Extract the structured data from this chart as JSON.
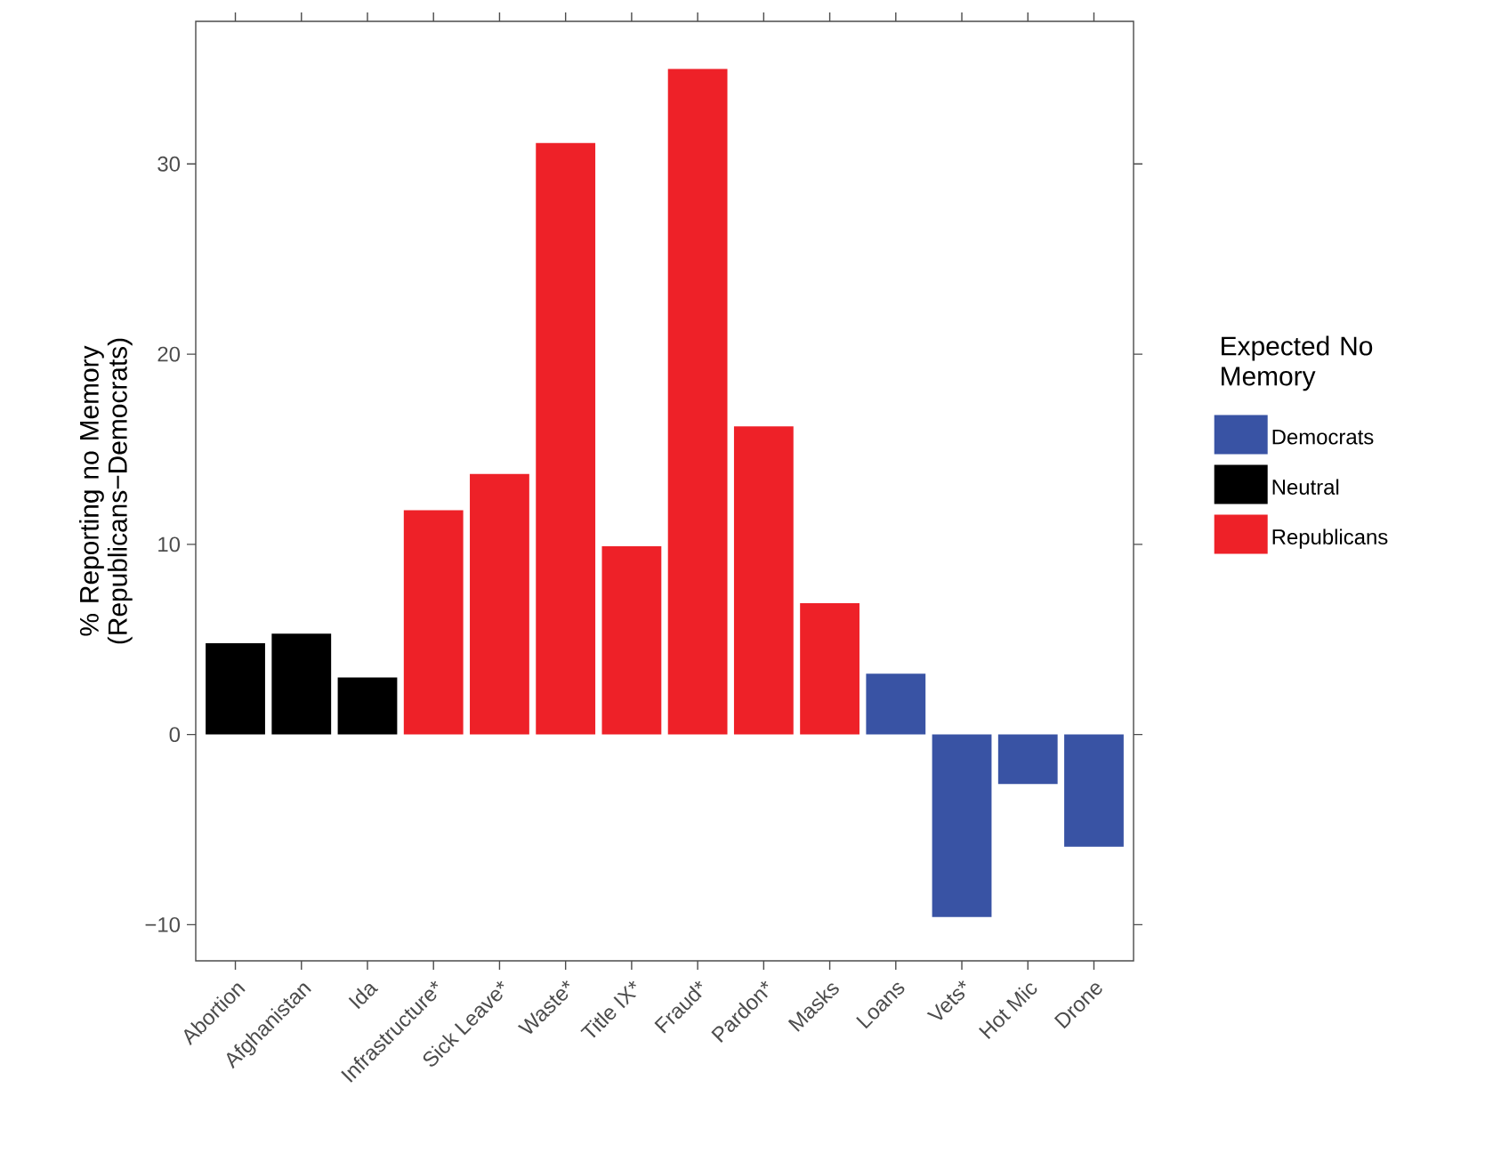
{
  "chart_data": {
    "type": "bar",
    "ylabel": "% Reporting no Memory (Republicans−Democrats)",
    "legend_title": "Expected No Memory",
    "categories": [
      "Abortion",
      "Afghanistan",
      "Ida",
      "Infrastructure*",
      "Sick Leave*",
      "Waste*",
      "Title IX*",
      "Fraud*",
      "Pardon*",
      "Masks",
      "Loans",
      "Vets*",
      "Hot Mic",
      "Drone"
    ],
    "series": [
      {
        "name": "Democrats",
        "color": "#3953a4",
        "values": [
          null,
          null,
          null,
          null,
          null,
          null,
          null,
          null,
          null,
          null,
          3.2,
          -9.6,
          -2.6,
          -5.9
        ]
      },
      {
        "name": "Neutral",
        "color": "#000000",
        "values": [
          4.8,
          5.3,
          3.0,
          null,
          null,
          null,
          null,
          null,
          null,
          null,
          null,
          null,
          null,
          null
        ]
      },
      {
        "name": "Republicans",
        "color": "#ee2128",
        "values": [
          null,
          null,
          null,
          11.8,
          13.7,
          31.1,
          9.9,
          35.0,
          16.2,
          6.9,
          null,
          null,
          null,
          null
        ]
      }
    ],
    "ylim": [
      -11.9,
      37.5
    ],
    "yticks": [
      {
        "value": -10,
        "label": "−10"
      },
      0,
      10,
      20,
      30
    ],
    "legend": "right",
    "grid": false
  }
}
